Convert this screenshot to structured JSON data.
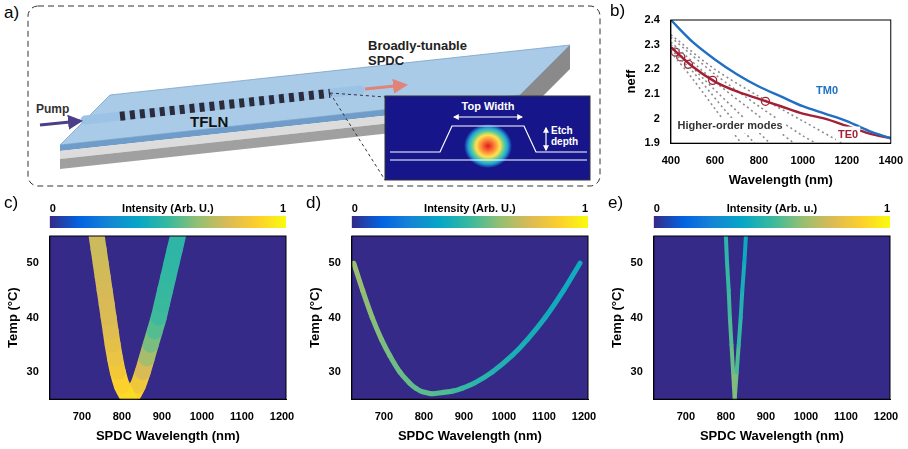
{
  "diagram": {
    "panel_label": "a)",
    "pump": "Pump",
    "material": "TFLN",
    "output": "Broadly-tunable SPDC",
    "top_width": "Top Width",
    "etch_depth": "Etch depth"
  },
  "chart_data": [
    {
      "panel_label": "b)",
      "type": "line",
      "xlabel": "Wavelength (nm)",
      "ylabel": "neff",
      "xlim": [
        400,
        1400
      ],
      "xticks": [
        400,
        600,
        800,
        1000,
        1200,
        1400
      ],
      "ylim": [
        1.9,
        2.4
      ],
      "yticks": [
        1.9,
        2,
        2.1,
        2.2,
        2.3,
        2.4
      ],
      "grid": false,
      "series": [
        {
          "name": "TM0",
          "color": "#1f6fc4",
          "line_style": "solid",
          "x": [
            400,
            500,
            600,
            700,
            800,
            900,
            1000,
            1100,
            1200,
            1300,
            1400
          ],
          "values": [
            2.4,
            2.31,
            2.24,
            2.18,
            2.13,
            2.09,
            2.05,
            2.02,
            1.99,
            1.95,
            1.92
          ]
        },
        {
          "name": "TE0",
          "color": "#a31f34",
          "line_style": "solid",
          "x": [
            400,
            500,
            600,
            700,
            800,
            900,
            1000,
            1100,
            1200,
            1300,
            1400
          ],
          "values": [
            2.29,
            2.21,
            2.15,
            2.11,
            2.08,
            2.05,
            2.02,
            2.0,
            1.97,
            1.94,
            1.92
          ]
        },
        {
          "name": "Higher-order modes",
          "color": "#8c8c8c",
          "line_style": "dotted",
          "lines": [
            {
              "x": [
                400,
                600,
                800,
                1000,
                1180
              ],
              "values": [
                2.34,
                2.2,
                2.09,
                1.99,
                1.9
              ]
            },
            {
              "x": [
                400,
                600,
                800,
                1000,
                1060
              ],
              "values": [
                2.33,
                2.18,
                2.05,
                1.93,
                1.9
              ]
            },
            {
              "x": [
                400,
                600,
                800,
                960
              ],
              "values": [
                2.31,
                2.15,
                2.01,
                1.9
              ]
            },
            {
              "x": [
                400,
                550,
                700,
                850
              ],
              "values": [
                2.3,
                2.16,
                2.03,
                1.9
              ]
            },
            {
              "x": [
                400,
                500,
                650,
                780
              ],
              "values": [
                2.28,
                2.19,
                2.03,
                1.9
              ]
            },
            {
              "x": [
                400,
                500,
                600,
                720
              ],
              "values": [
                2.27,
                2.16,
                2.04,
                1.9
              ]
            }
          ]
        },
        {
          "type": "scatter",
          "marker": "circle",
          "color": "#a31f34",
          "x": [
            420,
            445,
            480,
            590,
            830
          ],
          "values": [
            2.27,
            2.25,
            2.22,
            2.155,
            2.07
          ]
        }
      ]
    },
    {
      "panel_label": "c)",
      "type": "line",
      "xlabel": "SPDC Wavelength (nm)",
      "ylabel": "Temp (°C)",
      "xlim": [
        620,
        1210
      ],
      "xticks": [
        700,
        800,
        900,
        1000,
        1100,
        1200
      ],
      "ylim": [
        25,
        55
      ],
      "yticks": [
        30,
        40,
        50
      ],
      "grid": false,
      "colorbar": {
        "label": "Intensity (Arb. U.)",
        "range": [
          0,
          1
        ],
        "ticks": [
          0,
          1
        ]
      },
      "series": [
        {
          "x": [
            818,
            800,
            790,
            783,
            777,
            772,
            767,
            762,
            757,
            752,
            747,
            742,
            737
          ],
          "values": [
            25,
            27.5,
            30,
            32.5,
            35,
            37.5,
            40,
            42.5,
            45,
            47.5,
            50,
            52.5,
            55
          ],
          "intensity": [
            0.92,
            0.9,
            0.86,
            0.82,
            0.8,
            0.78,
            0.76,
            0.75,
            0.75,
            0.74,
            0.74,
            0.73,
            0.72
          ]
        },
        {
          "x": [
            822,
            840,
            852,
            862,
            872,
            882,
            892,
            900,
            908,
            916,
            924,
            932,
            940
          ],
          "values": [
            25,
            27.5,
            30,
            32.5,
            35,
            37.5,
            40,
            42.5,
            45,
            47.5,
            50,
            52.5,
            55
          ],
          "intensity": [
            0.92,
            0.86,
            0.8,
            0.7,
            0.62,
            0.56,
            0.52,
            0.5,
            0.5,
            0.49,
            0.48,
            0.48,
            0.47
          ]
        }
      ]
    },
    {
      "panel_label": "d)",
      "type": "line",
      "xlabel": "SPDC Wavelength (nm)",
      "ylabel": "Temp (°C)",
      "xlim": [
        620,
        1210
      ],
      "xticks": [
        700,
        800,
        900,
        1000,
        1100,
        1200
      ],
      "ylim": [
        25,
        55
      ],
      "yticks": [
        30,
        40,
        50
      ],
      "grid": false,
      "colorbar": {
        "label": "Intensity (Arb. U.)",
        "range": [
          0,
          1
        ],
        "ticks": [
          0,
          1
        ]
      },
      "series": [
        {
          "x": [
            818,
            792,
            780,
            764,
            740,
            715,
            694,
            671,
            647,
            625
          ],
          "values": [
            26,
            26.5,
            27,
            28,
            30,
            33,
            36,
            40,
            45,
            50
          ],
          "intensity": [
            0.55,
            0.55,
            0.55,
            0.56,
            0.57,
            0.58,
            0.6,
            0.61,
            0.63,
            0.65
          ]
        },
        {
          "x": [
            822,
            873,
            895,
            927,
            971,
            1020,
            1059,
            1103,
            1149,
            1190
          ],
          "values": [
            26,
            26.5,
            27,
            28,
            30,
            33,
            36,
            40,
            45,
            50
          ],
          "intensity": [
            0.55,
            0.52,
            0.5,
            0.47,
            0.45,
            0.43,
            0.42,
            0.41,
            0.4,
            0.4
          ]
        }
      ]
    },
    {
      "panel_label": "e)",
      "type": "line",
      "xlabel": "SPDC Wavelength (nm)",
      "ylabel": "Temp (°C)",
      "xlim": [
        620,
        1210
      ],
      "xticks": [
        700,
        800,
        900,
        1000,
        1100,
        1200
      ],
      "ylim": [
        25,
        55
      ],
      "yticks": [
        30,
        40,
        50
      ],
      "grid": false,
      "colorbar": {
        "label": "Intensity (Arb. u.)",
        "range": [
          0,
          1
        ],
        "ticks": [
          0,
          1
        ]
      },
      "series": [
        {
          "x": [
            822,
            818,
            814,
            810,
            807,
            803,
            800
          ],
          "values": [
            25,
            30,
            35,
            40,
            45,
            50,
            55
          ],
          "intensity": [
            0.62,
            0.58,
            0.55,
            0.52,
            0.5,
            0.48,
            0.46
          ]
        },
        {
          "x": [
            822,
            827,
            832,
            837,
            841,
            846,
            850
          ],
          "values": [
            25,
            30,
            35,
            40,
            45,
            50,
            55
          ],
          "intensity": [
            0.62,
            0.55,
            0.5,
            0.46,
            0.43,
            0.4,
            0.38
          ]
        }
      ]
    }
  ]
}
